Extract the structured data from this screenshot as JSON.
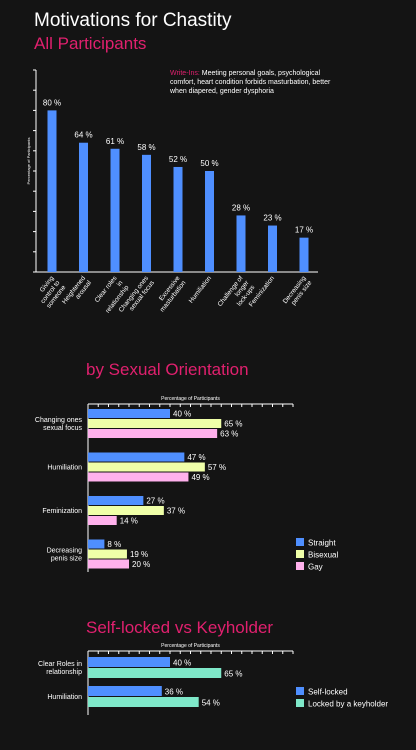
{
  "header": {
    "title": "Motivations for Chastity",
    "subtitle": "All Participants"
  },
  "writein": {
    "label": "Write-Ins:",
    "text": "Meeting personal goals, psychological comfort, heart condition forbids masturbation, better when diapered, gender dysphoria"
  },
  "colors": {
    "accent": "#e0206e",
    "bar_blue": "#4f8fff",
    "straight": "#4f8fff",
    "bisexual": "#efffa8",
    "gay": "#ffb1ec",
    "self_locked": "#4f8fff",
    "keyholder": "#7fe8c9"
  },
  "chart_data": [
    {
      "id": "all",
      "type": "bar",
      "ylabel": "Percentage of Participants",
      "ylim": [
        0,
        100
      ],
      "categories": [
        "Giving control to someone",
        "Heightened arousal",
        "Clear roles in relationship",
        "Changing ones sexual focus",
        "Excessive masturbation",
        "Humiliation",
        "Challenge of longer lock-ups",
        "Feminization",
        "Decreasing penis size"
      ],
      "values": [
        80,
        64,
        61,
        58,
        52,
        50,
        28,
        23,
        17
      ],
      "value_labels": [
        "80 %",
        "64 %",
        "61 %",
        "58 %",
        "52 %",
        "50 %",
        "28 %",
        "23 %",
        "17 %"
      ]
    },
    {
      "id": "orientation",
      "type": "bar",
      "orientation": "horizontal",
      "title": "by Sexual Orientation",
      "xlabel": "Percentage of Participants",
      "xlim": [
        0,
        100
      ],
      "categories": [
        "Changing ones sexual focus",
        "Humiliation",
        "Feminization",
        "Decreasing penis size"
      ],
      "series": [
        {
          "name": "Straight",
          "values": [
            40,
            47,
            27,
            8
          ],
          "labels": [
            "40 %",
            "47 %",
            "27 %",
            "8 %"
          ]
        },
        {
          "name": "Bisexual",
          "values": [
            65,
            57,
            37,
            19
          ],
          "labels": [
            "65 %",
            "57 %",
            "37 %",
            "19 %"
          ]
        },
        {
          "name": "Gay",
          "values": [
            63,
            49,
            14,
            20
          ],
          "labels": [
            "63 %",
            "49 %",
            "14 %",
            "20 %"
          ]
        }
      ],
      "legend": "bottom-right"
    },
    {
      "id": "lock",
      "type": "bar",
      "orientation": "horizontal",
      "title": "Self-locked vs Keyholder",
      "xlabel": "Percentage of Participants",
      "xlim": [
        0,
        100
      ],
      "categories": [
        "Clear Roles in relationship",
        "Humiliation"
      ],
      "series": [
        {
          "name": "Self-locked",
          "values": [
            40,
            36
          ],
          "labels": [
            "40 %",
            "36 %"
          ]
        },
        {
          "name": "Locked by a keyholder",
          "values": [
            65,
            54
          ],
          "labels": [
            "65 %",
            "54 %"
          ]
        }
      ],
      "legend": "bottom-right"
    }
  ]
}
